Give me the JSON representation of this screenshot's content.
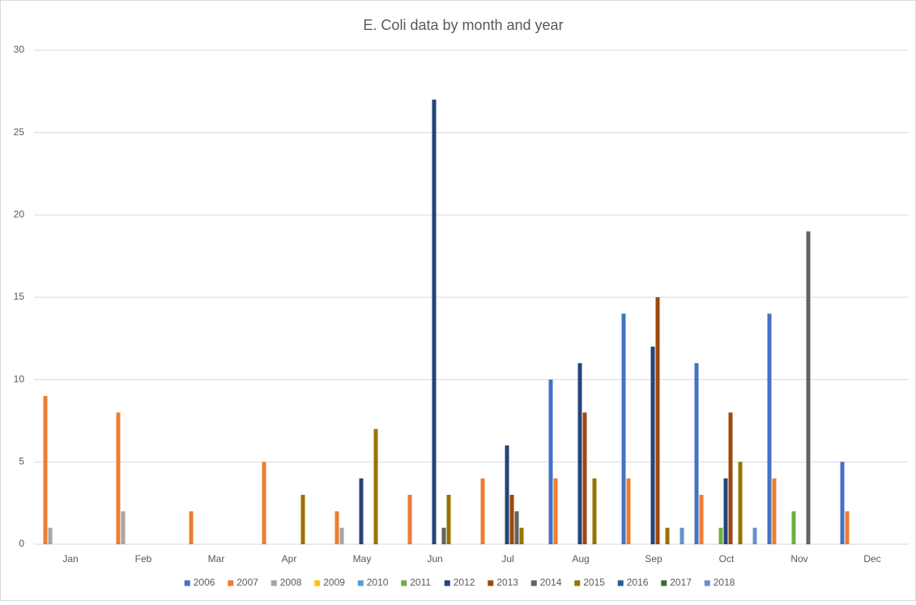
{
  "chart_data": {
    "type": "bar",
    "title": "E. Coli data by month and year",
    "categories": [
      "Jan",
      "Feb",
      "Mar",
      "Apr",
      "May",
      "Jun",
      "Jul",
      "Aug",
      "Sep",
      "Oct",
      "Nov",
      "Dec"
    ],
    "ylim": [
      0,
      30
    ],
    "yticks": [
      0,
      5,
      10,
      15,
      20,
      25,
      30
    ],
    "grid": true,
    "legend": "bottom",
    "series": [
      {
        "name": "2006",
        "color": "#4472C4",
        "values": [
          null,
          null,
          null,
          null,
          null,
          null,
          null,
          10,
          14,
          11,
          14,
          5
        ]
      },
      {
        "name": "2007",
        "color": "#ED7D31",
        "values": [
          9,
          8,
          2,
          5,
          2,
          3,
          4,
          4,
          4,
          3,
          4,
          2
        ]
      },
      {
        "name": "2008",
        "color": "#A5A5A5",
        "values": [
          1,
          2,
          null,
          null,
          1,
          null,
          null,
          null,
          null,
          null,
          null,
          null
        ]
      },
      {
        "name": "2009",
        "color": "#FFC000",
        "values": [
          null,
          null,
          null,
          null,
          null,
          null,
          null,
          null,
          null,
          null,
          null,
          null
        ]
      },
      {
        "name": "2010",
        "color": "#5B9BD5",
        "values": [
          null,
          null,
          null,
          null,
          null,
          null,
          null,
          null,
          null,
          null,
          null,
          null
        ]
      },
      {
        "name": "2011",
        "color": "#70AD47",
        "values": [
          null,
          null,
          null,
          null,
          null,
          null,
          null,
          null,
          null,
          1,
          2,
          null
        ]
      },
      {
        "name": "2012",
        "color": "#264478",
        "values": [
          null,
          null,
          null,
          null,
          4,
          27,
          6,
          11,
          12,
          4,
          null,
          null
        ]
      },
      {
        "name": "2013",
        "color": "#9E480E",
        "values": [
          null,
          null,
          null,
          null,
          null,
          null,
          3,
          8,
          15,
          8,
          null,
          null
        ]
      },
      {
        "name": "2014",
        "color": "#636363",
        "values": [
          null,
          null,
          null,
          null,
          null,
          1,
          2,
          null,
          null,
          null,
          19,
          null
        ]
      },
      {
        "name": "2015",
        "color": "#997300",
        "values": [
          null,
          null,
          null,
          3,
          7,
          3,
          1,
          4,
          1,
          5,
          null,
          null
        ]
      },
      {
        "name": "2016",
        "color": "#255E91",
        "values": [
          null,
          null,
          null,
          null,
          null,
          null,
          null,
          null,
          null,
          null,
          null,
          null
        ]
      },
      {
        "name": "2017",
        "color": "#43682B",
        "values": [
          null,
          null,
          null,
          null,
          null,
          null,
          null,
          null,
          null,
          null,
          null,
          null
        ]
      },
      {
        "name": "2018",
        "color": "#698ED0",
        "values": [
          null,
          null,
          null,
          null,
          null,
          null,
          null,
          null,
          1,
          1,
          null,
          null
        ]
      }
    ]
  }
}
